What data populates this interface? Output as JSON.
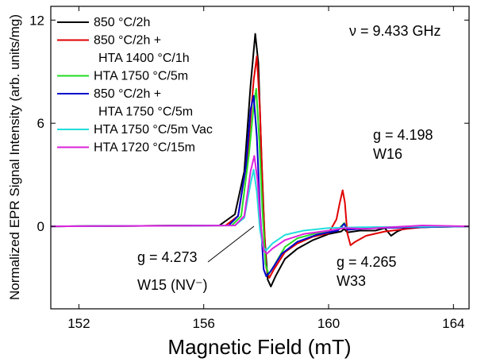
{
  "chart_data": {
    "type": "line",
    "xlabel": "Magnetic Field (mT)",
    "ylabel": "Normalized EPR Signal Intensity (arb. units/mg)",
    "xlim": [
      151.1,
      164.5
    ],
    "ylim": [
      -4.8,
      12.8
    ],
    "xticks": [
      "152",
      "156",
      "160",
      "164"
    ],
    "yticks": [
      "0",
      "6",
      "12"
    ],
    "grid": false,
    "legend_position": "top-left",
    "annotations": {
      "freq": "ν = 9.433 GHz",
      "g_w16": "g = 4.198",
      "w16": "W16",
      "g_w15": "g = 4.273",
      "w15": "W15 (NV⁻)",
      "g_w33": "g = 4.265",
      "w33": "W33"
    },
    "series": [
      {
        "name": "850 °C/2h",
        "legend_lines": [
          "850 °C/2h"
        ],
        "color": "#000000",
        "points": [
          [
            151.1,
            0
          ],
          [
            156.5,
            0.05
          ],
          [
            157.0,
            0.7
          ],
          [
            157.3,
            3.2
          ],
          [
            157.5,
            8.2
          ],
          [
            157.65,
            11.2
          ],
          [
            157.75,
            9.5
          ],
          [
            157.85,
            4.0
          ],
          [
            157.95,
            -0.6
          ],
          [
            158.05,
            -3.1
          ],
          [
            158.15,
            -3.5
          ],
          [
            158.3,
            -2.9
          ],
          [
            158.6,
            -1.9
          ],
          [
            159.0,
            -1.3
          ],
          [
            159.5,
            -0.8
          ],
          [
            160.0,
            -0.45
          ],
          [
            160.4,
            -0.3
          ],
          [
            160.5,
            -0.15
          ],
          [
            160.6,
            -0.35
          ],
          [
            161.0,
            -0.25
          ],
          [
            161.5,
            -0.25
          ],
          [
            161.8,
            -0.1
          ],
          [
            162.0,
            -0.55
          ],
          [
            162.2,
            -0.3
          ],
          [
            162.6,
            0
          ],
          [
            163.0,
            -0.05
          ],
          [
            164.5,
            0
          ]
        ]
      },
      {
        "name": "850 °C/2h + HTA 1400 °C/1h",
        "legend_lines": [
          "850 °C/2h +",
          "HTA 1400 °C/1h"
        ],
        "color": "#e00000",
        "points": [
          [
            151.1,
            0
          ],
          [
            156.7,
            0.05
          ],
          [
            157.1,
            0.6
          ],
          [
            157.4,
            4.0
          ],
          [
            157.6,
            8.5
          ],
          [
            157.7,
            9.9
          ],
          [
            157.8,
            6.8
          ],
          [
            157.9,
            1.5
          ],
          [
            158.0,
            -2.4
          ],
          [
            158.1,
            -3.0
          ],
          [
            158.25,
            -2.5
          ],
          [
            158.6,
            -1.5
          ],
          [
            159.0,
            -1.0
          ],
          [
            159.5,
            -0.6
          ],
          [
            160.0,
            -0.4
          ],
          [
            160.25,
            0.4
          ],
          [
            160.35,
            1.3
          ],
          [
            160.45,
            2.1
          ],
          [
            160.52,
            1.4
          ],
          [
            160.6,
            -0.4
          ],
          [
            160.7,
            -1.1
          ],
          [
            160.85,
            -0.9
          ],
          [
            161.2,
            -0.55
          ],
          [
            161.8,
            -0.3
          ],
          [
            162.5,
            -0.15
          ],
          [
            163.0,
            -0.05
          ],
          [
            164.5,
            0
          ]
        ]
      },
      {
        "name": "HTA 1750 °C/5m",
        "legend_lines": [
          "HTA 1750 °C/5m"
        ],
        "color": "#22dd22",
        "points": [
          [
            151.1,
            0
          ],
          [
            156.9,
            0.05
          ],
          [
            157.2,
            0.6
          ],
          [
            157.45,
            4.2
          ],
          [
            157.6,
            7.0
          ],
          [
            157.68,
            8.0
          ],
          [
            157.78,
            5.0
          ],
          [
            157.88,
            1.0
          ],
          [
            157.98,
            -2.2
          ],
          [
            158.08,
            -2.8
          ],
          [
            158.25,
            -2.3
          ],
          [
            158.6,
            -1.2
          ],
          [
            159.0,
            -0.7
          ],
          [
            159.6,
            -0.4
          ],
          [
            160.3,
            -0.2
          ],
          [
            160.5,
            0.2
          ],
          [
            160.6,
            -0.15
          ],
          [
            161.5,
            -0.05
          ],
          [
            164.5,
            0
          ]
        ]
      },
      {
        "name": "850 °C/2h + HTA 1750 °C/5m",
        "legend_lines": [
          "850 °C/2h +",
          "HTA 1750 °C/5m"
        ],
        "color": "#0000cc",
        "points": [
          [
            151.1,
            0
          ],
          [
            156.8,
            0.05
          ],
          [
            157.1,
            0.6
          ],
          [
            157.35,
            3.5
          ],
          [
            157.5,
            6.8
          ],
          [
            157.6,
            7.6
          ],
          [
            157.7,
            5.2
          ],
          [
            157.8,
            1.0
          ],
          [
            157.92,
            -2.5
          ],
          [
            158.0,
            -2.9
          ],
          [
            158.15,
            -2.6
          ],
          [
            158.5,
            -1.6
          ],
          [
            159.0,
            -0.9
          ],
          [
            159.6,
            -0.5
          ],
          [
            160.3,
            -0.25
          ],
          [
            160.5,
            0.15
          ],
          [
            160.6,
            -0.2
          ],
          [
            161.5,
            -0.1
          ],
          [
            164.5,
            0
          ]
        ]
      },
      {
        "name": "HTA 1750 °C/5m Vac",
        "legend_lines": [
          "HTA 1750 °C/5m Vac"
        ],
        "color": "#22dddd",
        "points": [
          [
            151.1,
            0
          ],
          [
            157.0,
            0.05
          ],
          [
            157.3,
            0.5
          ],
          [
            157.5,
            2.5
          ],
          [
            157.6,
            3.3
          ],
          [
            157.7,
            2.0
          ],
          [
            157.8,
            -0.2
          ],
          [
            157.9,
            -1.2
          ],
          [
            158.0,
            -1.4
          ],
          [
            158.2,
            -1.0
          ],
          [
            158.6,
            -0.5
          ],
          [
            159.2,
            -0.25
          ],
          [
            160.0,
            -0.1
          ],
          [
            161.0,
            -0.05
          ],
          [
            164.5,
            0
          ]
        ]
      },
      {
        "name": "HTA 1720 °C/15m",
        "legend_lines": [
          "HTA 1720 °C/15m"
        ],
        "color": "#dd22dd",
        "points": [
          [
            151.1,
            0
          ],
          [
            157.0,
            0.05
          ],
          [
            157.3,
            0.6
          ],
          [
            157.5,
            3.2
          ],
          [
            157.62,
            4.1
          ],
          [
            157.72,
            2.7
          ],
          [
            157.82,
            0.2
          ],
          [
            157.92,
            -1.4
          ],
          [
            158.02,
            -1.6
          ],
          [
            158.2,
            -1.3
          ],
          [
            158.6,
            -0.8
          ],
          [
            159.2,
            -0.45
          ],
          [
            160.0,
            -0.25
          ],
          [
            160.5,
            -0.1
          ],
          [
            161.2,
            -0.15
          ],
          [
            162.0,
            -0.05
          ],
          [
            163.0,
            0.05
          ],
          [
            164.5,
            0
          ]
        ]
      }
    ]
  }
}
